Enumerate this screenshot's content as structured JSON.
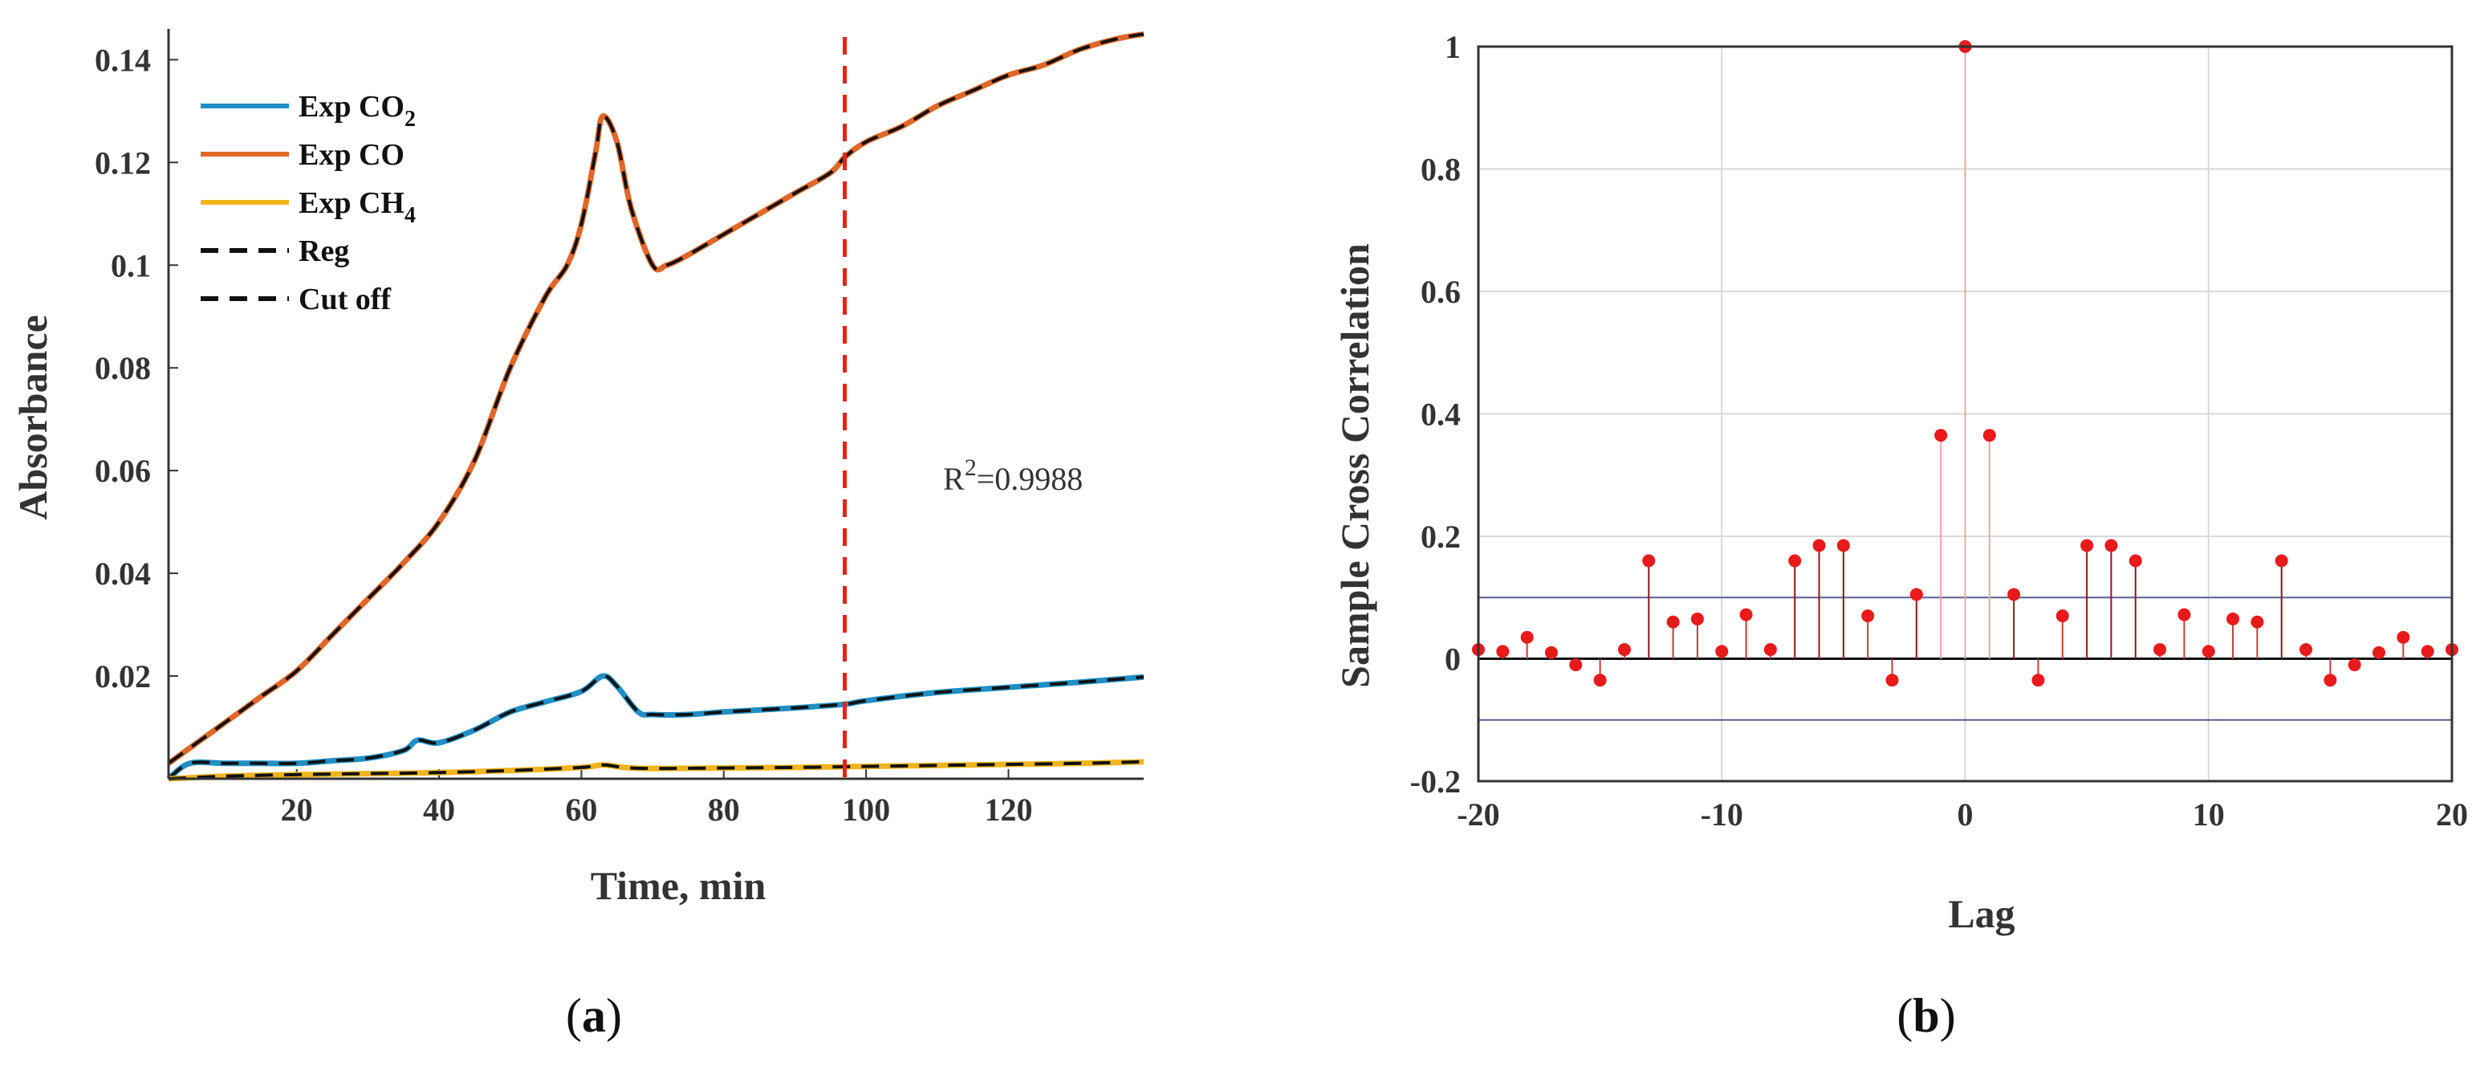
{
  "chart_data": [
    {
      "panel": "a",
      "type": "line",
      "xlabel": "Time, min",
      "ylabel": "Absorbance",
      "xlim": [
        2,
        139
      ],
      "ylim": [
        0,
        0.146
      ],
      "xticks": [
        20,
        40,
        60,
        80,
        100,
        120
      ],
      "yticks": [
        0.02,
        0.04,
        0.06,
        0.08,
        0.1,
        0.12,
        0.14
      ],
      "xtick_labels": [
        "20",
        "40",
        "60",
        "80",
        "100",
        "120"
      ],
      "ytick_labels": [
        "0.02",
        "0.04",
        "0.06",
        "0.08",
        "0.1",
        "0.12",
        "0.14"
      ],
      "legend": {
        "placement": "top-left",
        "entries": [
          {
            "label": "Exp CO",
            "sub": "2",
            "color": "#1f8fc4",
            "style": "solid"
          },
          {
            "label": "Exp CO",
            "sub": "",
            "color": "#e0672a",
            "style": "solid"
          },
          {
            "label": "Exp CH",
            "sub": "4",
            "color": "#f0b51c",
            "style": "solid"
          },
          {
            "label": "Reg",
            "sub": "",
            "color": "#111111",
            "style": "dashed"
          },
          {
            "label": "Cut off",
            "sub": "",
            "color": "#111111",
            "style": "dashed"
          }
        ]
      },
      "annotation": {
        "prefix": "R",
        "sup": "2",
        "value": "=0.9988"
      },
      "cutoff_x": 97,
      "cutoff_color": "#e8211b",
      "series": [
        {
          "name": "Exp CO",
          "color": "#e0672a",
          "x": [
            2,
            5,
            10,
            15,
            20,
            25,
            30,
            35,
            40,
            45,
            50,
            55,
            58,
            60,
            62,
            63,
            65,
            67,
            70,
            72,
            75,
            80,
            85,
            90,
            95,
            97,
            100,
            105,
            110,
            115,
            120,
            125,
            130,
            135,
            139
          ],
          "y": [
            0.003,
            0.006,
            0.011,
            0.016,
            0.021,
            0.028,
            0.035,
            0.042,
            0.05,
            0.062,
            0.08,
            0.094,
            0.1,
            0.108,
            0.122,
            0.129,
            0.124,
            0.111,
            0.1,
            0.1,
            0.102,
            0.106,
            0.11,
            0.114,
            0.118,
            0.121,
            0.124,
            0.127,
            0.131,
            0.134,
            0.137,
            0.139,
            0.142,
            0.144,
            0.145
          ]
        },
        {
          "name": "Exp CO2",
          "color": "#1f8fc4",
          "x": [
            2,
            5,
            10,
            15,
            20,
            25,
            30,
            35,
            37,
            40,
            45,
            50,
            55,
            60,
            63,
            65,
            68,
            70,
            75,
            80,
            90,
            97,
            100,
            110,
            120,
            130,
            139
          ],
          "y": [
            0.0,
            0.003,
            0.003,
            0.003,
            0.003,
            0.0035,
            0.004,
            0.0055,
            0.0075,
            0.007,
            0.0095,
            0.013,
            0.015,
            0.017,
            0.02,
            0.018,
            0.013,
            0.0125,
            0.0125,
            0.013,
            0.0138,
            0.0145,
            0.0152,
            0.0168,
            0.0178,
            0.0188,
            0.0198
          ]
        },
        {
          "name": "Exp CH4",
          "color": "#f0b51c",
          "x": [
            2,
            10,
            20,
            30,
            40,
            50,
            60,
            63,
            66,
            70,
            80,
            90,
            100,
            110,
            120,
            130,
            139
          ],
          "y": [
            0.0,
            0.0005,
            0.0008,
            0.001,
            0.0012,
            0.0016,
            0.0022,
            0.0027,
            0.0022,
            0.002,
            0.0021,
            0.0022,
            0.0024,
            0.0026,
            0.0028,
            0.003,
            0.0033
          ]
        }
      ]
    },
    {
      "panel": "b",
      "type": "stem",
      "xlabel": "Lag",
      "ylabel": "Sample Cross Correlation",
      "xlim": [
        -20,
        20
      ],
      "ylim": [
        -0.2,
        1
      ],
      "xticks": [
        -20,
        -10,
        0,
        10,
        20
      ],
      "yticks": [
        -0.2,
        0,
        0.2,
        0.4,
        0.6,
        0.8,
        1
      ],
      "xtick_labels": [
        "-20",
        "-10",
        "0",
        "10",
        "20"
      ],
      "ytick_labels": [
        "-0.2",
        "0",
        "0.2",
        "0.4",
        "0.6",
        "0.8",
        "1"
      ],
      "bounds": [
        0.1,
        -0.1
      ],
      "lags": [
        -20,
        -19,
        -18,
        -17,
        -16,
        -15,
        -14,
        -13,
        -12,
        -11,
        -10,
        -9,
        -8,
        -7,
        -6,
        -5,
        -4,
        -3,
        -2,
        -1,
        0,
        1,
        2,
        3,
        4,
        5,
        6,
        7,
        8,
        9,
        10,
        11,
        12,
        13,
        14,
        15,
        16,
        17,
        18,
        19,
        20
      ],
      "values": [
        0.015,
        0.012,
        0.035,
        0.01,
        -0.01,
        -0.035,
        0.015,
        0.16,
        0.06,
        0.065,
        0.012,
        0.072,
        0.015,
        0.16,
        0.185,
        0.185,
        0.07,
        -0.035,
        0.105,
        0.365,
        1.0,
        0.365,
        0.105,
        -0.035,
        0.07,
        0.185,
        0.185,
        0.16,
        0.015,
        0.072,
        0.012,
        0.065,
        0.06,
        0.16,
        0.015,
        -0.035,
        -0.01,
        0.01,
        0.035,
        0.012,
        0.015
      ]
    }
  ],
  "captions": {
    "a": "a",
    "b": "b"
  }
}
